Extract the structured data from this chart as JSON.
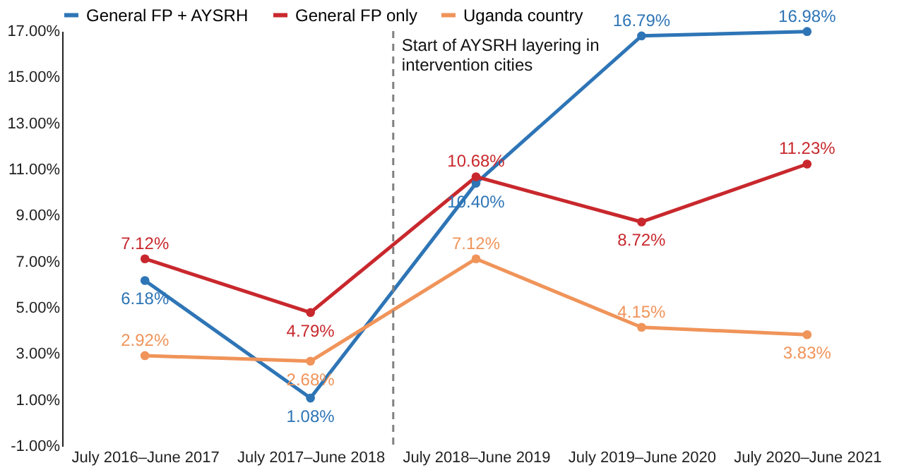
{
  "chart_data": {
    "type": "line",
    "categories": [
      "July 2016–June 2017",
      "July 2017–June 2018",
      "July 2018–June 2019",
      "July 2019–June 2020",
      "July 2020–June 2021"
    ],
    "series": [
      {
        "name": "General FP + AYSRH",
        "color": "#2e75b6",
        "values": [
          6.18,
          1.08,
          10.4,
          16.79,
          16.98
        ],
        "value_labels": [
          "6.18%",
          "1.08%",
          "10.40%",
          "16.79%",
          "16.98%"
        ]
      },
      {
        "name": "General FP only",
        "color": "#c8282d",
        "values": [
          7.12,
          4.79,
          10.68,
          8.72,
          11.23
        ],
        "value_labels": [
          "7.12%",
          "4.79%",
          "10.68%",
          "8.72%",
          "11.23%"
        ]
      },
      {
        "name": "Uganda country",
        "color": "#f0945a",
        "values": [
          2.92,
          2.68,
          7.12,
          4.15,
          3.83
        ],
        "value_labels": [
          "2.92%",
          "2.68%",
          "7.12%",
          "4.15%",
          "3.83%"
        ]
      }
    ],
    "ylim": [
      -1,
      17
    ],
    "yticks": [
      {
        "value": -1,
        "label": "-1.00%"
      },
      {
        "value": 1,
        "label": "1.00%"
      },
      {
        "value": 3,
        "label": "3.00%"
      },
      {
        "value": 5,
        "label": "5.00%"
      },
      {
        "value": 7,
        "label": "7.00%"
      },
      {
        "value": 9,
        "label": "9.00%"
      },
      {
        "value": 11,
        "label": "11.00%"
      },
      {
        "value": 13,
        "label": "13.00%"
      },
      {
        "value": 15,
        "label": "15.00%"
      },
      {
        "value": 17,
        "label": "17.00%"
      }
    ],
    "annotations": [
      "Start of AYSRH layering in\nintervention cities"
    ],
    "marker": "circle",
    "line_style": "solid",
    "grid": false,
    "legend": "top left"
  }
}
